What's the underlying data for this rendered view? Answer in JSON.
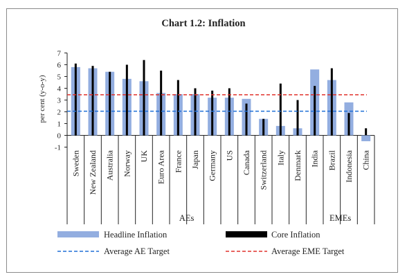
{
  "chart_data": {
    "type": "bar",
    "title": "Chart 1.2: Inflation",
    "ylabel": "per cent (y-o-y)",
    "xlabel": "",
    "ylim": [
      -1,
      7
    ],
    "yticks": [
      "7",
      "6",
      "5",
      "4",
      "3",
      "2",
      "1",
      "0",
      "-1"
    ],
    "categories": [
      "Sweden",
      "New Zealand",
      "Australia",
      "Norway",
      "UK",
      "Euro Area",
      "France",
      "Japan",
      "Germany",
      "US",
      "Canada",
      "Switzerland",
      "Italy",
      "Denmark",
      "India",
      "Brazil",
      "Indonesia",
      "China"
    ],
    "groups": [
      {
        "name": "AEs",
        "start": 0,
        "end": 13
      },
      {
        "name": "EMEs",
        "start": 14,
        "end": 17
      }
    ],
    "series": [
      {
        "name": "Headline Inflation",
        "color": "#93aee0",
        "values": [
          5.8,
          5.7,
          5.4,
          4.8,
          4.6,
          3.6,
          3.5,
          3.5,
          3.2,
          3.2,
          3.1,
          1.4,
          0.8,
          0.6,
          5.6,
          4.7,
          2.8,
          -0.5
        ]
      },
      {
        "name": "Core Inflation",
        "color": "#000000",
        "values": [
          6.1,
          5.9,
          5.4,
          6.0,
          6.4,
          5.5,
          4.7,
          4.0,
          3.8,
          4.0,
          2.7,
          1.4,
          4.4,
          3.0,
          4.2,
          5.7,
          1.9,
          0.6
        ]
      }
    ],
    "reference_lines": [
      {
        "name": "Average AE Target",
        "value": 2.05,
        "color": "#1f6fd6",
        "style": "dashed"
      },
      {
        "name": "Average EME Target",
        "value": 3.45,
        "color": "#e0312b",
        "style": "dashed"
      }
    ],
    "legend": {
      "placement": "bottom",
      "items": [
        "Headline Inflation",
        "Core Inflation",
        "Average AE Target",
        "Average EME Target"
      ]
    }
  }
}
